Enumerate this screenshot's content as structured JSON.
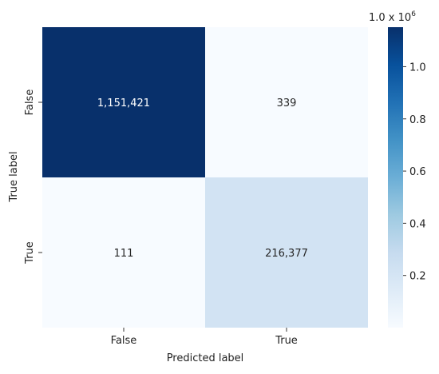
{
  "chart_data": {
    "type": "heatmap",
    "xlabel": "Predicted label",
    "ylabel": "True label",
    "x_categories": [
      "False",
      "True"
    ],
    "y_categories": [
      "False",
      "True"
    ],
    "values": [
      [
        1151421,
        339
      ],
      [
        111,
        216377
      ]
    ],
    "cell_labels": [
      [
        "1,151,421",
        "339"
      ],
      [
        "111",
        "216,377"
      ]
    ],
    "colormap": "Blues",
    "colorbar": {
      "ticks": [
        0.2,
        0.4,
        0.6,
        0.8,
        1.0
      ],
      "tick_labels": [
        "0.2",
        "0.4",
        "0.6",
        "0.8",
        "1.0"
      ],
      "multiplier": "1.0 x 10",
      "multiplier_exponent": "6",
      "range": [
        0,
        1151421
      ]
    }
  }
}
